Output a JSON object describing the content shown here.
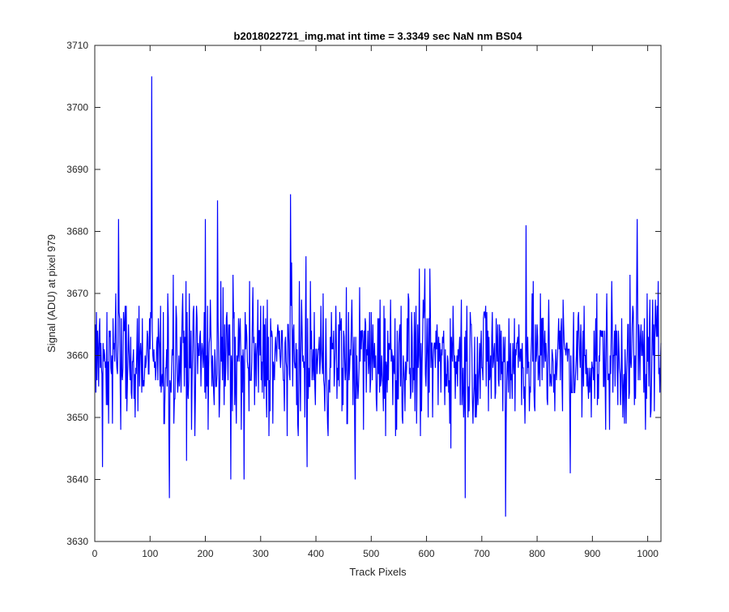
{
  "chart_data": {
    "type": "line",
    "title": "b2018022721_img.mat int time = 3.3349 sec  NaN nm BS04",
    "xlabel": "Track Pixels",
    "ylabel": "Signal (ADU) at pixel 979",
    "xlim": [
      0,
      1024
    ],
    "ylim": [
      3630,
      3710
    ],
    "x_ticks": [
      0,
      100,
      200,
      300,
      400,
      500,
      600,
      700,
      800,
      900,
      1000
    ],
    "y_ticks": [
      3630,
      3640,
      3650,
      3660,
      3670,
      3680,
      3690,
      3700,
      3710
    ],
    "grid": false,
    "legend": "none",
    "series": [
      {
        "color": "#0000ff",
        "x_start": 1,
        "x_step": 1,
        "approximate": true,
        "mean": 3659.5,
        "notable_points": [
          {
            "x": 14,
            "y": 3642
          },
          {
            "x": 43,
            "y": 3682
          },
          {
            "x": 103,
            "y": 3705
          },
          {
            "x": 135,
            "y": 3637
          },
          {
            "x": 200,
            "y": 3682
          },
          {
            "x": 222,
            "y": 3685
          },
          {
            "x": 246,
            "y": 3640
          },
          {
            "x": 270,
            "y": 3640
          },
          {
            "x": 354,
            "y": 3686
          },
          {
            "x": 384,
            "y": 3642
          },
          {
            "x": 471,
            "y": 3640
          },
          {
            "x": 670,
            "y": 3637
          },
          {
            "x": 743,
            "y": 3634
          },
          {
            "x": 780,
            "y": 3681
          },
          {
            "x": 860,
            "y": 3641
          },
          {
            "x": 981,
            "y": 3682
          }
        ]
      }
    ]
  }
}
